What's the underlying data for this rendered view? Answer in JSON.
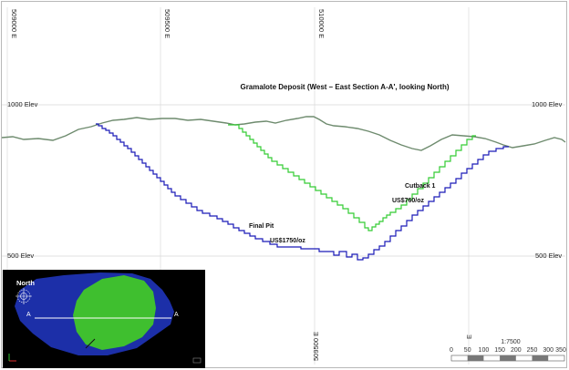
{
  "title": "Gramalote Deposit (West – East Section A-A', looking North)",
  "top_coords": [
    "509000 E",
    "509500 E",
    "510000 E"
  ],
  "bottom_coords": [
    "509500 E",
    "E"
  ],
  "left_labels": {
    "top": "1000 Elev",
    "bottom": "500 Elev"
  },
  "right_labels": {
    "top": "1000 Elev",
    "bottom": "500 Elev"
  },
  "annotations": {
    "final_pit": "Final Pit",
    "final_price": "US$1750/oz",
    "cutback": "Cutback 1",
    "cutback_price": "US$760/oz"
  },
  "scale": {
    "ratio": "1:7500",
    "ticks": [
      "0",
      "50",
      "100",
      "150",
      "200",
      "250",
      "300",
      "350"
    ]
  },
  "inset": {
    "north": "North",
    "section_left": "A",
    "section_right": "A"
  },
  "colors": {
    "topography": "#6e8b6e",
    "final_pit": "#1a1ab8",
    "cutback": "#33cc33",
    "inset_background": "#000000",
    "inset_outer": "#1c2fa8",
    "inset_inner": "#3fbf2f"
  }
}
